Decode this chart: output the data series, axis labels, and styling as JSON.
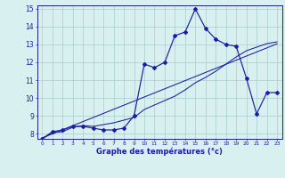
{
  "title": "Graphe des températures (°c)",
  "x": [
    0,
    1,
    2,
    3,
    4,
    5,
    6,
    7,
    8,
    9,
    10,
    11,
    12,
    13,
    14,
    15,
    16,
    17,
    18,
    19,
    20,
    21,
    22,
    23
  ],
  "line1": [
    7.7,
    8.1,
    8.2,
    8.4,
    8.4,
    8.3,
    8.2,
    8.2,
    8.3,
    9.0,
    11.9,
    11.7,
    12.0,
    13.5,
    13.7,
    15.0,
    13.9,
    13.3,
    13.0,
    12.9,
    11.1,
    9.1,
    10.3,
    10.3
  ],
  "line2": [
    7.7,
    8.05,
    8.1,
    8.35,
    8.45,
    8.4,
    8.5,
    8.6,
    8.75,
    8.9,
    9.35,
    9.6,
    9.85,
    10.1,
    10.45,
    10.85,
    11.15,
    11.5,
    11.9,
    12.3,
    12.65,
    12.85,
    13.05,
    13.15
  ],
  "line3": [
    7.75,
    7.98,
    8.21,
    8.44,
    8.67,
    8.9,
    9.13,
    9.36,
    9.59,
    9.82,
    10.05,
    10.28,
    10.51,
    10.74,
    10.97,
    11.2,
    11.43,
    11.66,
    11.89,
    12.12,
    12.35,
    12.58,
    12.81,
    13.04
  ],
  "line_color": "#1c1ca8",
  "bg_color": "#d8f0f0",
  "grid_color": "#aacccc",
  "ylim_min": 7.7,
  "ylim_max": 15.2,
  "yticks": [
    8,
    9,
    10,
    11,
    12,
    13,
    14,
    15
  ],
  "marker": "D",
  "marker_size": 2.0,
  "xlabel_fontsize": 6.0,
  "ytick_fontsize": 5.5,
  "xtick_fontsize": 4.2
}
